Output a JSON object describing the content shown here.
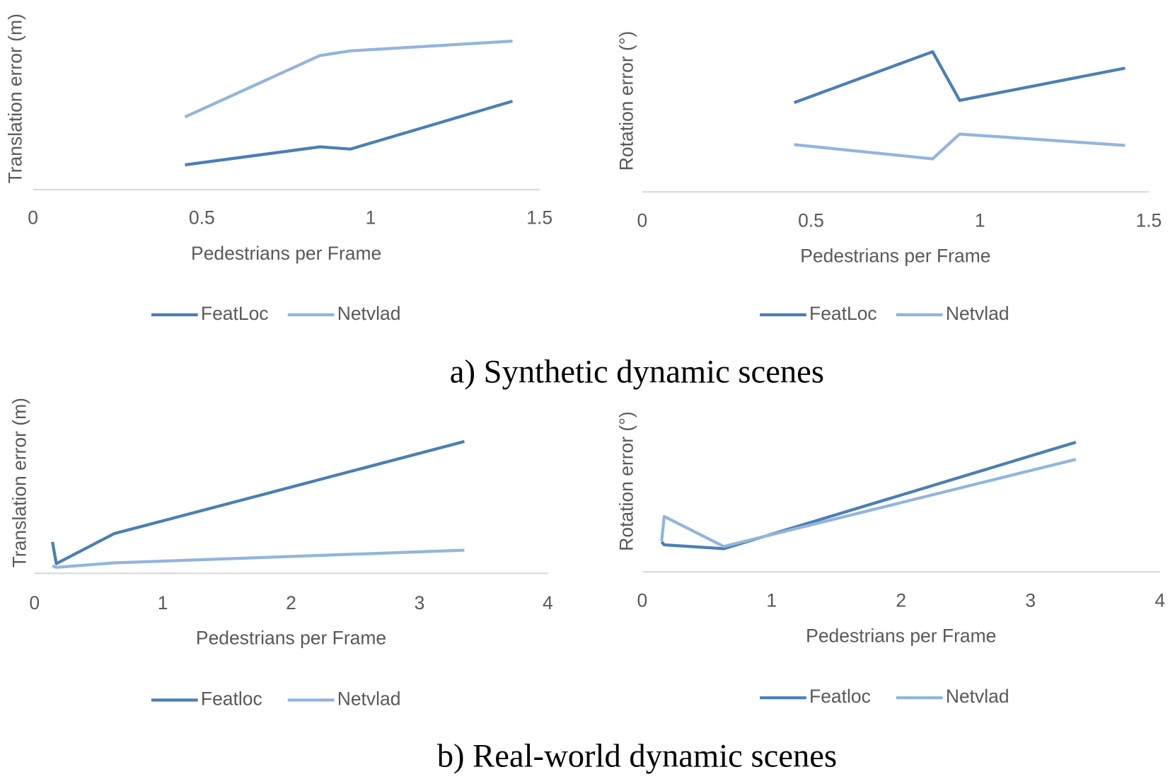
{
  "captions": [
    "a)  Synthetic dynamic scenes",
    "b) Real-world dynamic scenes"
  ],
  "chart_data": [
    {
      "type": "line",
      "xlabel": "Pedestrians per Frame",
      "ylabel": "Translation error (m)",
      "xlim": [
        0,
        1.5
      ],
      "xticks": [
        0,
        0.5,
        1,
        1.5
      ],
      "ylim": [
        0,
        100
      ],
      "x": [
        0.45,
        0.85,
        0.94,
        1.42
      ],
      "series": [
        {
          "name": "FeatLoc",
          "color": "#4a7fb5",
          "values": [
            15.5,
            26.8,
            25.4,
            55.4
          ]
        },
        {
          "name": "Netvlad",
          "color": "#93b5dc",
          "values": [
            45.5,
            84,
            86.9,
            93
          ]
        }
      ]
    },
    {
      "type": "line",
      "xlabel": "Pedestrians per Frame",
      "ylabel": "Rotation error (°)",
      "xlim": [
        0,
        1.5
      ],
      "xticks": [
        0,
        0.5,
        1,
        1.5
      ],
      "ylim": [
        0,
        100
      ],
      "x": [
        0.45,
        0.86,
        0.94,
        1.43
      ],
      "series": [
        {
          "name": "FeatLoc",
          "color": "#4a7fb5",
          "values": [
            55.9,
            87.8,
            57.3,
            77.5
          ]
        },
        {
          "name": "Netvlad",
          "color": "#93b5dc",
          "values": [
            29.6,
            20.7,
            36.2,
            29.1
          ]
        }
      ]
    },
    {
      "type": "line",
      "xlabel": "Pedestrians per Frame",
      "ylabel": "Translation error (m)",
      "xlim": [
        0,
        4
      ],
      "xticks": [
        0,
        1,
        2,
        3,
        4
      ],
      "ylim": [
        0,
        100
      ],
      "x": [
        0.14,
        0.17,
        0.62,
        3.35
      ],
      "series": [
        {
          "name": "Featloc",
          "color": "#4a7fb5",
          "values": [
            19.8,
            6.1,
            25,
            83
          ]
        },
        {
          "name": "Netvlad",
          "color": "#93b5dc",
          "values": [
            4.7,
            3.8,
            6.6,
            14.6
          ]
        }
      ]
    },
    {
      "type": "line",
      "xlabel": "Pedestrians per Frame",
      "ylabel": "Rotation error (°)",
      "xlim": [
        0,
        4
      ],
      "xticks": [
        0,
        1,
        2,
        3,
        4
      ],
      "ylim": [
        0,
        100
      ],
      "x": [
        0.15,
        0.17,
        0.63,
        3.35
      ],
      "series": [
        {
          "name": "Featloc",
          "color": "#4a7fb5",
          "values": [
            18.9,
            17,
            14.6,
            81.6
          ]
        },
        {
          "name": "Netvlad",
          "color": "#93b5dc",
          "values": [
            19.3,
            34.9,
            16,
            70.8
          ]
        }
      ]
    }
  ]
}
